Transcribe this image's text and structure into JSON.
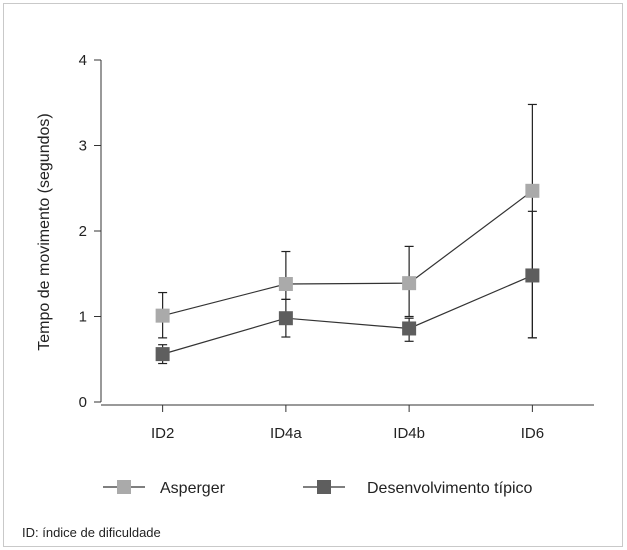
{
  "chart_data": {
    "type": "line",
    "title": "",
    "ylabel": "Tempo de movimento (segundos)",
    "xlabel": "",
    "categories": [
      "ID2",
      "ID4a",
      "ID4b",
      "ID6"
    ],
    "ylim": [
      0,
      4
    ],
    "yticks": [
      0,
      1,
      2,
      3,
      4
    ],
    "grid": false,
    "legend_position": "bottom",
    "series": [
      {
        "name": "Asperger",
        "color": "#aaaaaa",
        "marker": "square",
        "values": [
          1.01,
          1.38,
          1.39,
          2.47
        ],
        "error_low": [
          0.75,
          1.2,
          1.0,
          0.75
        ],
        "error_high": [
          1.28,
          1.76,
          1.82,
          3.48
        ]
      },
      {
        "name": "Desenvolvimento típico",
        "color": "#5e5e5e",
        "marker": "square",
        "values": [
          0.56,
          0.98,
          0.86,
          1.48
        ],
        "error_low": [
          0.45,
          0.76,
          0.71,
          0.75
        ],
        "error_high": [
          0.67,
          1.2,
          0.98,
          2.23
        ]
      }
    ]
  },
  "footnote": "ID: índice de dificuldade"
}
